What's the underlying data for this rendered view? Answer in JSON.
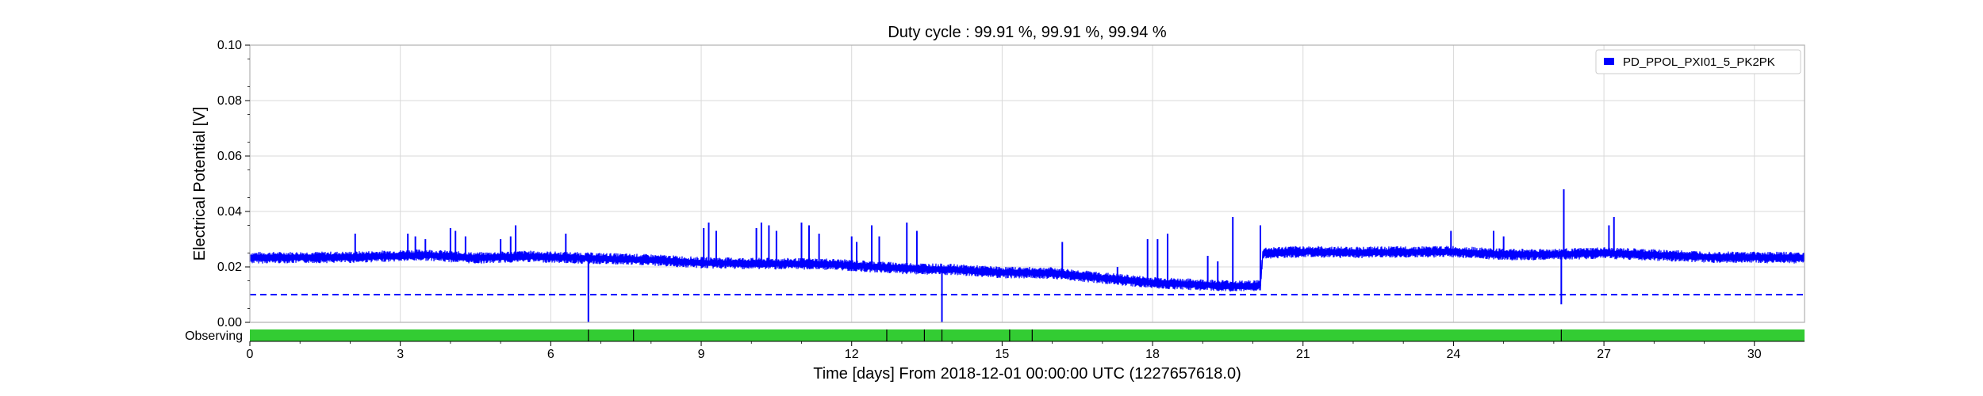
{
  "chart_data": {
    "type": "line",
    "title": "Duty cycle : 99.91 %, 99.91 %, 99.94 %",
    "xlabel": "Time [days] From 2018-12-01 00:00:00 UTC (1227657618.0)",
    "ylabel": "Electrical Potential [V]",
    "xlim": [
      0,
      31
    ],
    "ylim": [
      0,
      0.1
    ],
    "x_ticks": [
      0,
      3,
      6,
      9,
      12,
      15,
      18,
      21,
      24,
      27,
      30
    ],
    "x_tick_labels": [
      "0",
      "3",
      "6",
      "9",
      "12",
      "15",
      "18",
      "21",
      "24",
      "27",
      "30"
    ],
    "y_ticks": [
      0,
      0.02,
      0.04,
      0.06,
      0.08,
      0.1
    ],
    "y_tick_labels": [
      "0.00",
      "0.02",
      "0.04",
      "0.06",
      "0.08",
      "0.10"
    ],
    "grid": true,
    "legend_position": "top-right",
    "series": [
      {
        "name": "PD_PPOL_PXI01_5_PK2PK",
        "color": "#0000ff",
        "baseline": {
          "x": [
            0,
            2,
            3.5,
            4.5,
            5.5,
            7,
            8,
            9,
            10,
            11.5,
            13,
            14,
            15,
            16,
            17,
            18,
            19,
            19.8,
            20.15,
            20.2,
            21,
            22,
            24,
            25,
            26,
            27,
            29,
            31
          ],
          "y": [
            0.0233,
            0.0235,
            0.0243,
            0.0232,
            0.0238,
            0.023,
            0.0225,
            0.0215,
            0.0212,
            0.021,
            0.0195,
            0.019,
            0.018,
            0.0178,
            0.016,
            0.0143,
            0.0135,
            0.013,
            0.0133,
            0.025,
            0.0255,
            0.0252,
            0.0255,
            0.0245,
            0.0245,
            0.025,
            0.0236,
            0.0233
          ]
        },
        "spikes": {
          "x": [
            2.1,
            3.15,
            3.3,
            3.5,
            4.0,
            4.1,
            4.3,
            5.0,
            5.2,
            5.3,
            6.3,
            9.05,
            9.15,
            9.3,
            10.1,
            10.2,
            10.35,
            10.5,
            11.0,
            11.15,
            11.35,
            12.0,
            12.1,
            12.4,
            12.55,
            13.1,
            13.3,
            16.2,
            17.3,
            17.9,
            18.1,
            18.3,
            19.1,
            19.3,
            19.6,
            20.15,
            23.95,
            24.8,
            25.0,
            26.2,
            27.1,
            27.2
          ],
          "y": [
            0.032,
            0.032,
            0.031,
            0.03,
            0.034,
            0.033,
            0.031,
            0.03,
            0.031,
            0.035,
            0.032,
            0.034,
            0.036,
            0.033,
            0.034,
            0.036,
            0.035,
            0.033,
            0.036,
            0.035,
            0.032,
            0.031,
            0.029,
            0.035,
            0.031,
            0.036,
            0.033,
            0.029,
            0.02,
            0.03,
            0.03,
            0.032,
            0.024,
            0.022,
            0.038,
            0.035,
            0.033,
            0.033,
            0.031,
            0.048,
            0.035,
            0.038
          ]
        },
        "dips": {
          "x": [
            6.75,
            13.8,
            26.15
          ],
          "y": [
            0.0,
            0.0,
            0.0065
          ]
        }
      }
    ],
    "threshold": {
      "y": 0.01,
      "color": "#0000ff",
      "style": "dashed"
    },
    "segment_bar": {
      "label": "Observing",
      "color": "#33cc33",
      "dividers_x": [
        6.75,
        7.65,
        12.7,
        13.45,
        13.8,
        15.15,
        15.6,
        26.15
      ]
    }
  }
}
